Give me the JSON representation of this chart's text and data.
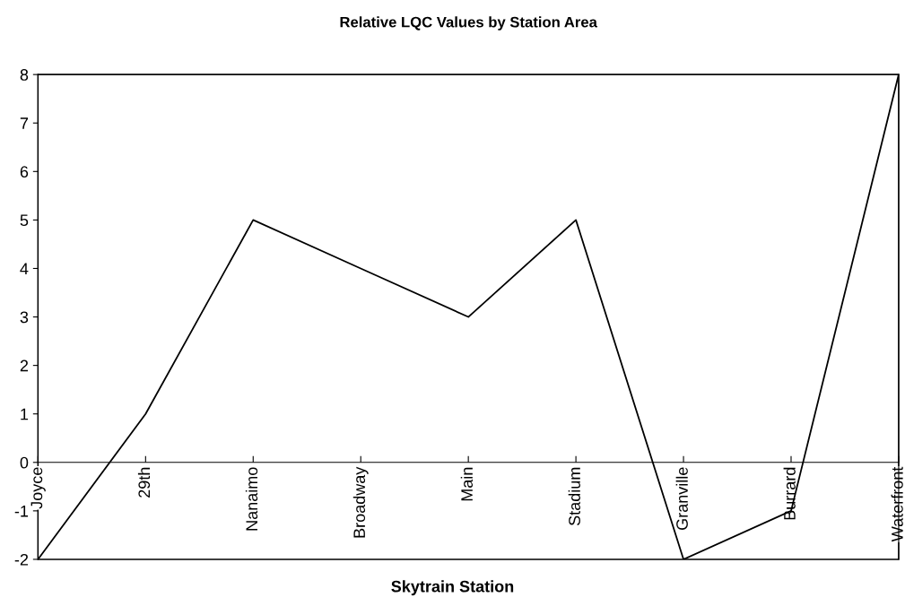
{
  "chart_data": {
    "type": "line",
    "title": "Relative LQC Values by Station Area",
    "xlabel": "Skytrain Station",
    "categories": [
      "Joyce",
      "29th",
      "Nanaimo",
      "Broadway",
      "Main",
      "Stadium",
      "Granville",
      "Burrard",
      "Waterfront"
    ],
    "series": [
      {
        "color": "#000000",
        "values": [
          -2,
          1,
          5,
          4,
          3,
          5,
          -2,
          -1,
          8
        ]
      }
    ],
    "ylim": [
      -2,
      8
    ],
    "yticks": [
      -2,
      -1,
      0,
      1,
      2,
      3,
      4,
      5,
      6,
      7,
      8
    ],
    "grid": false,
    "legend": false,
    "marker": "none",
    "line_style": "solid"
  }
}
